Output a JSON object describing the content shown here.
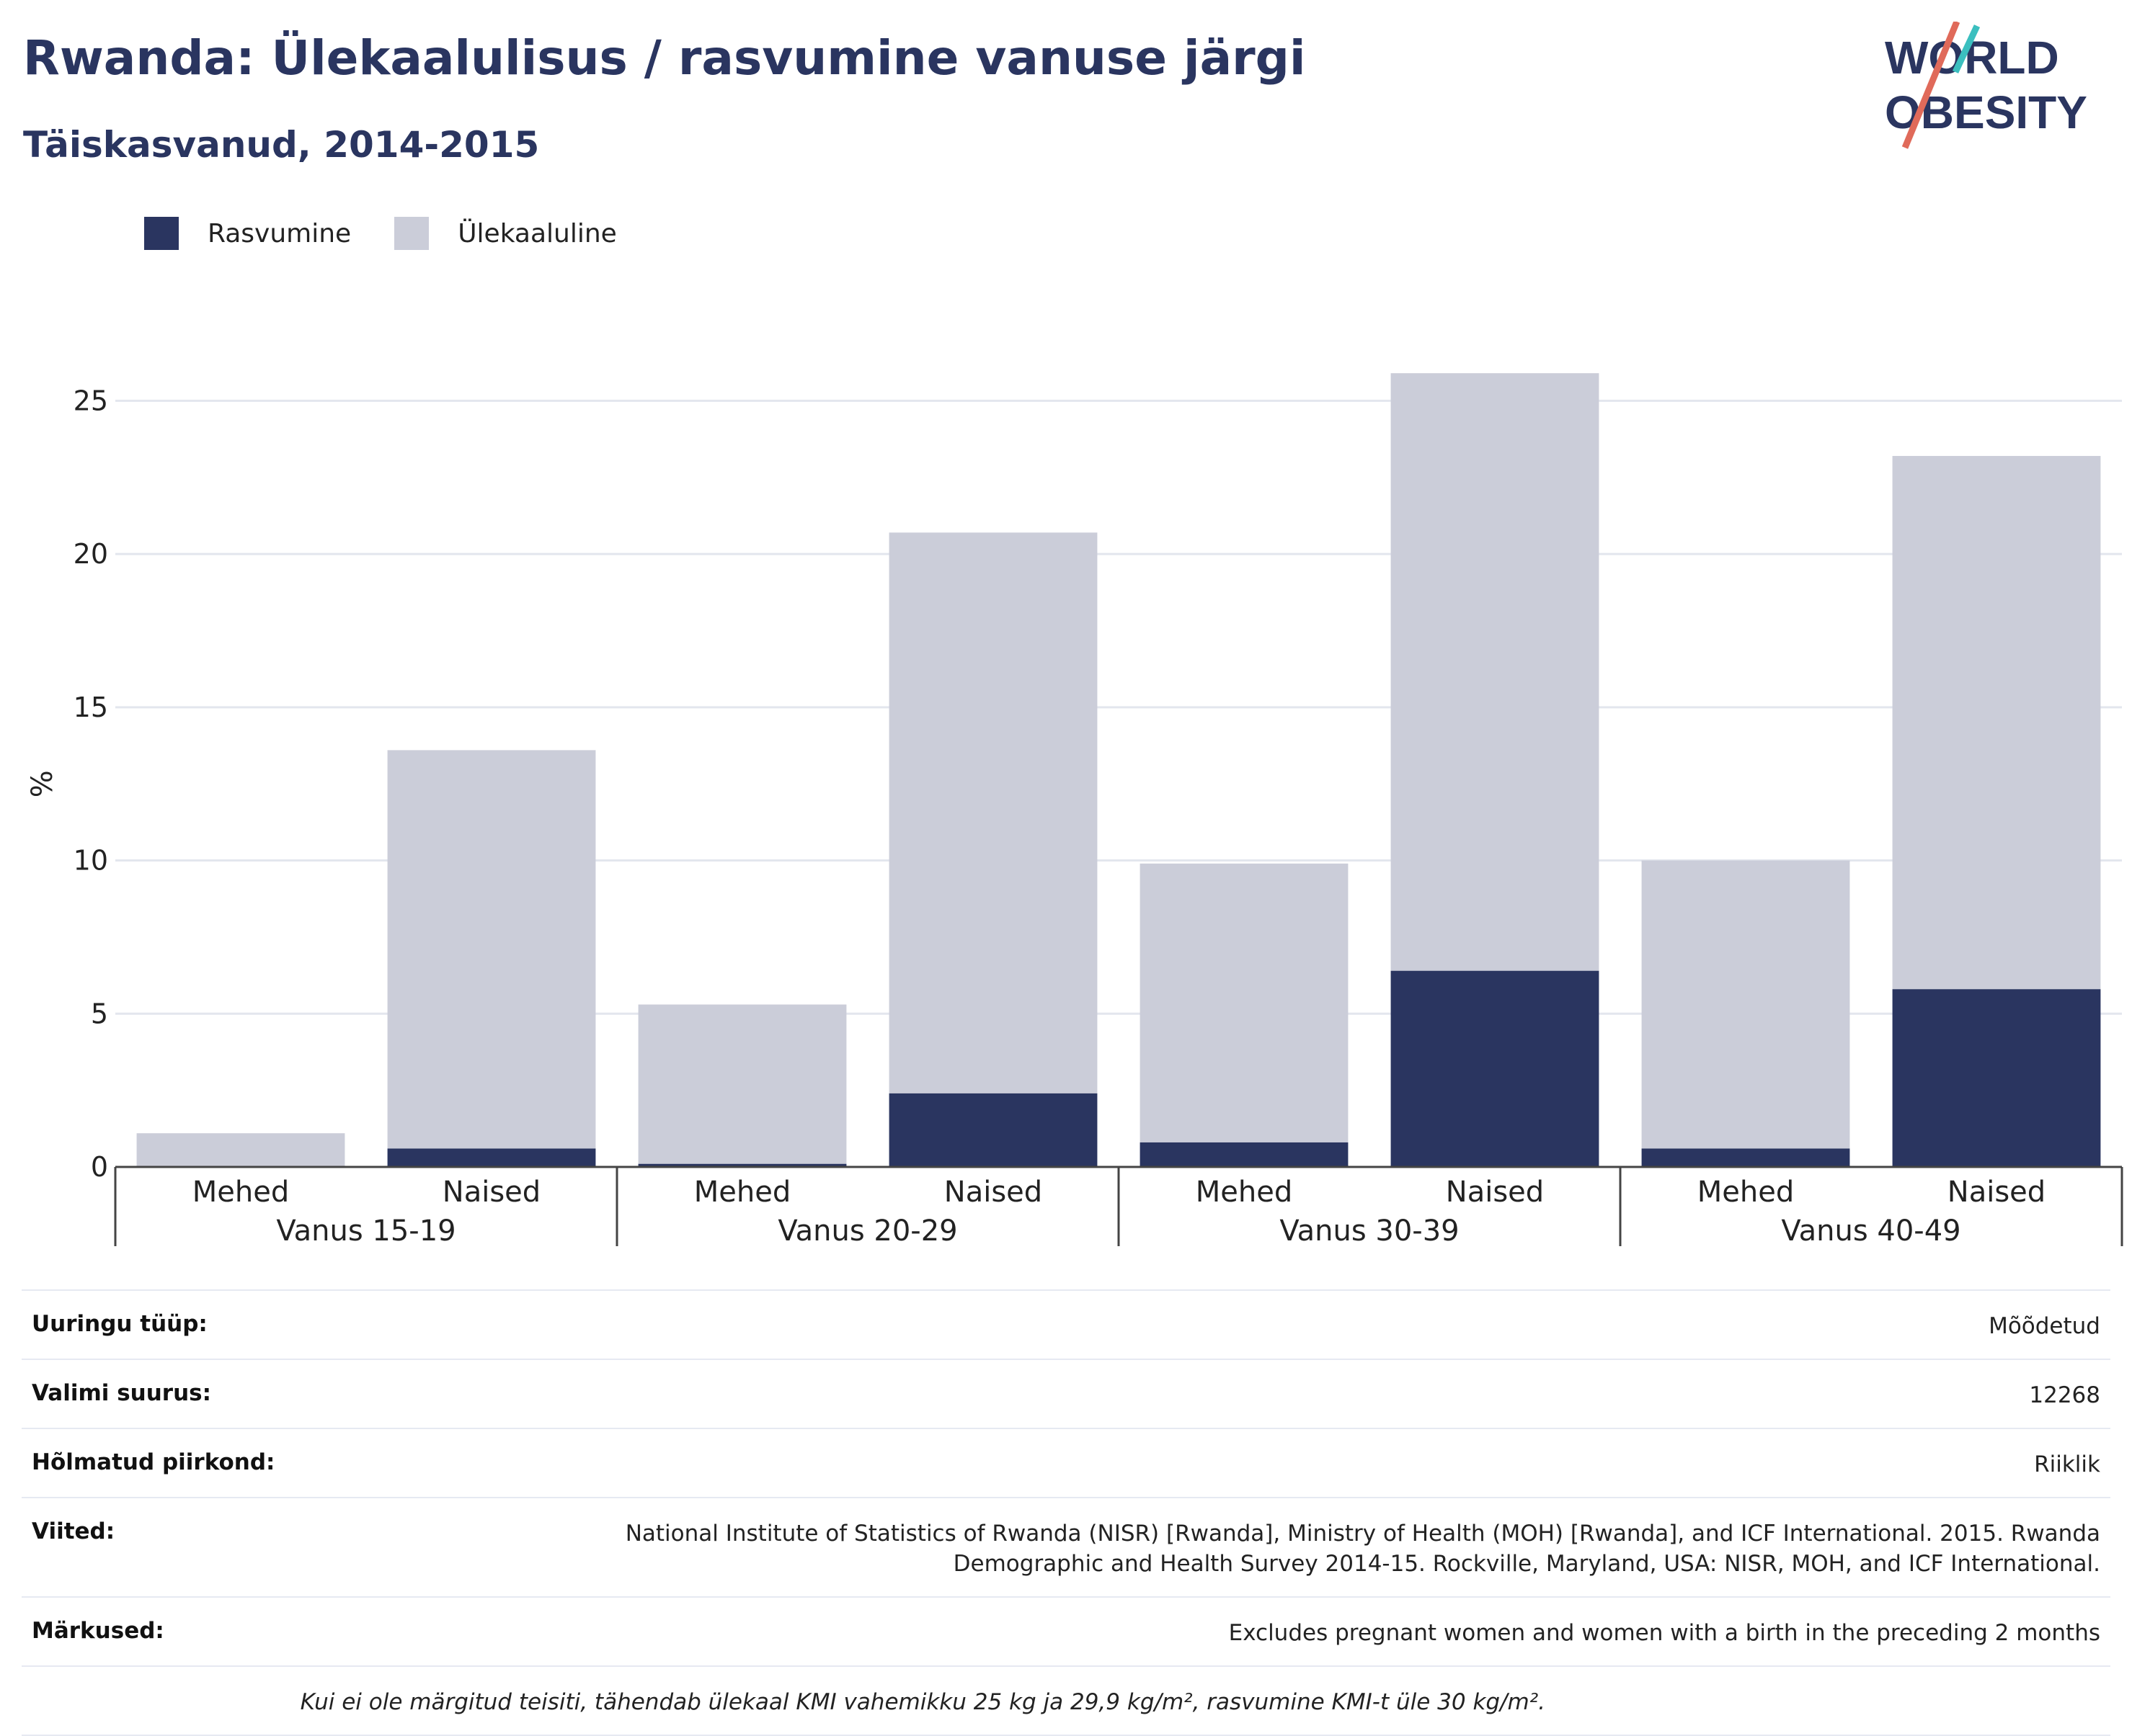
{
  "header": {
    "title": "Rwanda: Ülekaalulisus / rasvumine vanuse järgi",
    "subtitle": "Täiskasvanud, 2014-2015"
  },
  "logo": {
    "line1": "WORLD",
    "line2": "OBESITY"
  },
  "colors": {
    "obesity": "#2a3560",
    "overweight": "#cbcdd9",
    "title": "#2a3560",
    "logo_teal": "#3bbfbf",
    "logo_red": "#e06a5a"
  },
  "chart_data": {
    "type": "bar",
    "stacked": true,
    "ylabel": "%",
    "ylim": [
      0,
      27
    ],
    "yticks": [
      0,
      5,
      10,
      15,
      20,
      25
    ],
    "grid": true,
    "legend_position": "top-left",
    "groups": [
      "Vanus 15-19",
      "Vanus 20-29",
      "Vanus 30-39",
      "Vanus 40-49"
    ],
    "subcategories": [
      "Mehed",
      "Naised"
    ],
    "categories": [
      "Mehed",
      "Naised",
      "Mehed",
      "Naised",
      "Mehed",
      "Naised",
      "Mehed",
      "Naised"
    ],
    "series": [
      {
        "name": "Rasvumine",
        "color": "#2a3560",
        "values": [
          0.0,
          0.6,
          0.1,
          2.4,
          0.8,
          6.4,
          0.6,
          5.8
        ]
      },
      {
        "name": "Ülekaaluline",
        "color": "#cbcdd9",
        "values": [
          1.1,
          13.0,
          5.2,
          18.3,
          9.1,
          19.5,
          9.4,
          17.4
        ]
      }
    ]
  },
  "meta": {
    "survey_type_label": "Uuringu tüüp:",
    "survey_type_value": "Mõõdetud",
    "sample_size_label": "Valimi suurus:",
    "sample_size_value": "12268",
    "region_label": "Hõlmatud piirkond:",
    "region_value": "Riiklik",
    "references_label": "Viited:",
    "references_value": "National Institute of Statistics of Rwanda (NISR) [Rwanda], Ministry of Health (MOH) [Rwanda], and ICF International. 2015. Rwanda Demographic and Health Survey 2014-15. Rockville, Maryland, USA: NISR, MOH, and ICF International.",
    "notes_label": "Märkused:",
    "notes_value": "Excludes pregnant women and women with a birth in the preceding 2 months",
    "footnote": "Kui ei ole märgitud teisiti, tähendab ülekaal KMI vahemikku 25 kg ja 29,9 kg/m², rasvumine KMI-t üle 30 kg/m²."
  }
}
